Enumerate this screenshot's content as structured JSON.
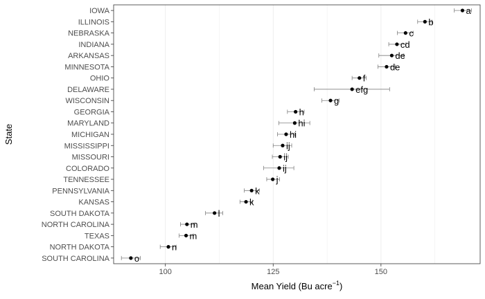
{
  "chart_data": {
    "type": "scatter",
    "orientation": "horizontal",
    "xlabel": "Mean Yield (Bu acre",
    "xlabel_superscript": "−1",
    "xlabel_suffix": ")",
    "ylabel": "State",
    "xlim": [
      88,
      173
    ],
    "x_ticks": [
      100,
      125,
      150
    ],
    "x_tick_labels": [
      "100",
      "125",
      "150"
    ],
    "grid": true,
    "legend": "none",
    "colors": {
      "point": "#000000",
      "errorbar": "#7f7f7f",
      "grid": "#ebebeb",
      "border": "#333333"
    },
    "states": [
      {
        "state": "IOWA",
        "mean": 168.9,
        "lo": 167.0,
        "hi": 171.0,
        "group": "a"
      },
      {
        "state": "ILLINOIS",
        "mean": 160.2,
        "lo": 158.5,
        "hi": 161.8,
        "group": "b"
      },
      {
        "state": "NEBRASKA",
        "mean": 155.7,
        "lo": 153.8,
        "hi": 157.5,
        "group": "c"
      },
      {
        "state": "INDIANA",
        "mean": 153.7,
        "lo": 151.8,
        "hi": 155.8,
        "group": "cd"
      },
      {
        "state": "ARKANSAS",
        "mean": 152.5,
        "lo": 149.5,
        "hi": 155.3,
        "group": "de"
      },
      {
        "state": "MINNESOTA",
        "mean": 151.3,
        "lo": 149.3,
        "hi": 153.3,
        "group": "de"
      },
      {
        "state": "OHIO",
        "mean": 145.0,
        "lo": 143.3,
        "hi": 146.6,
        "group": "f"
      },
      {
        "state": "DELAWARE",
        "mean": 143.3,
        "lo": 134.5,
        "hi": 152.0,
        "group": "efg"
      },
      {
        "state": "WISCONSIN",
        "mean": 138.3,
        "lo": 136.3,
        "hi": 140.3,
        "group": "g"
      },
      {
        "state": "GEORGIA",
        "mean": 130.2,
        "lo": 128.3,
        "hi": 132.2,
        "group": "h"
      },
      {
        "state": "MARYLAND",
        "mean": 130.0,
        "lo": 126.3,
        "hi": 133.5,
        "group": "hi"
      },
      {
        "state": "MICHIGAN",
        "mean": 128.0,
        "lo": 126.0,
        "hi": 130.0,
        "group": "hi"
      },
      {
        "state": "MISSISSIPPI",
        "mean": 127.2,
        "lo": 125.0,
        "hi": 129.3,
        "group": "ij"
      },
      {
        "state": "MISSOURI",
        "mean": 126.6,
        "lo": 124.8,
        "hi": 128.5,
        "group": "ij"
      },
      {
        "state": "COLORADO",
        "mean": 126.4,
        "lo": 122.8,
        "hi": 129.8,
        "group": "ij"
      },
      {
        "state": "TENNESSEE",
        "mean": 124.9,
        "lo": 123.5,
        "hi": 126.5,
        "group": "j"
      },
      {
        "state": "PENNSYLVANIA",
        "mean": 120.0,
        "lo": 118.3,
        "hi": 121.8,
        "group": "k"
      },
      {
        "state": "KANSAS",
        "mean": 118.7,
        "lo": 117.3,
        "hi": 120.2,
        "group": "k"
      },
      {
        "state": "SOUTH DAKOTA",
        "mean": 111.4,
        "lo": 109.3,
        "hi": 113.3,
        "group": "l"
      },
      {
        "state": "NORTH CAROLINA",
        "mean": 105.0,
        "lo": 103.5,
        "hi": 106.8,
        "group": "m"
      },
      {
        "state": "TEXAS",
        "mean": 104.8,
        "lo": 103.2,
        "hi": 106.5,
        "group": "m"
      },
      {
        "state": "NORTH DAKOTA",
        "mean": 100.7,
        "lo": 98.8,
        "hi": 102.5,
        "group": "n"
      },
      {
        "state": "SOUTH CAROLINA",
        "mean": 92.0,
        "lo": 89.8,
        "hi": 94.2,
        "group": "o"
      }
    ]
  }
}
